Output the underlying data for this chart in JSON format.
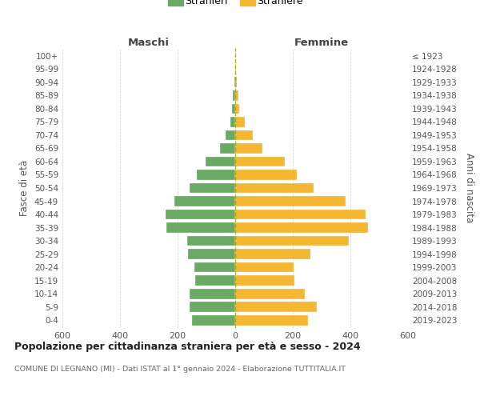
{
  "age_groups": [
    "0-4",
    "5-9",
    "10-14",
    "15-19",
    "20-24",
    "25-29",
    "30-34",
    "35-39",
    "40-44",
    "45-49",
    "50-54",
    "55-59",
    "60-64",
    "65-69",
    "70-74",
    "75-79",
    "80-84",
    "85-89",
    "90-94",
    "95-99",
    "100+"
  ],
  "birth_years": [
    "2019-2023",
    "2014-2018",
    "2009-2013",
    "2004-2008",
    "1999-2003",
    "1994-1998",
    "1989-1993",
    "1984-1988",
    "1979-1983",
    "1974-1978",
    "1969-1973",
    "1964-1968",
    "1959-1963",
    "1954-1958",
    "1949-1953",
    "1944-1948",
    "1939-1943",
    "1934-1938",
    "1929-1933",
    "1924-1928",
    "≤ 1923"
  ],
  "males": [
    150,
    158,
    158,
    138,
    143,
    163,
    168,
    238,
    242,
    212,
    157,
    132,
    102,
    52,
    32,
    18,
    10,
    7,
    2,
    0,
    0
  ],
  "females": [
    252,
    282,
    242,
    205,
    202,
    262,
    395,
    462,
    452,
    382,
    272,
    215,
    172,
    95,
    62,
    32,
    15,
    10,
    5,
    2,
    0
  ],
  "male_color": "#6aaa64",
  "female_color": "#f5b731",
  "background_color": "#ffffff",
  "grid_color": "#cccccc",
  "title": "Popolazione per cittadinanza straniera per età e sesso - 2024",
  "subtitle": "COMUNE DI LEGNANO (MI) - Dati ISTAT al 1° gennaio 2024 - Elaborazione TUTTITALIA.IT",
  "xlabel_left": "Maschi",
  "xlabel_right": "Femmine",
  "ylabel_left": "Fasce di età",
  "ylabel_right": "Anni di nascita",
  "legend_male": "Stranieri",
  "legend_female": "Straniere",
  "xlim": 600,
  "dpi": 100,
  "figsize": [
    6.0,
    5.0
  ]
}
